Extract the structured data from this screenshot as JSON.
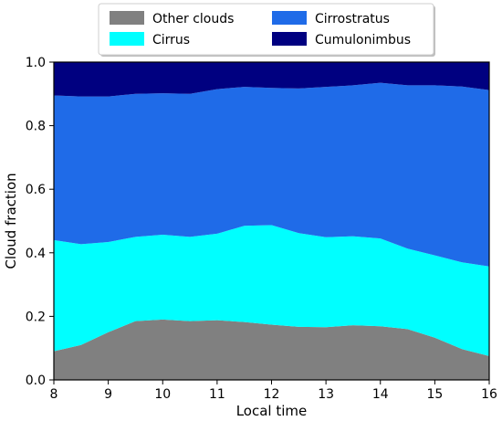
{
  "chart_data": {
    "type": "area",
    "stacked": true,
    "xlabel": "Local time",
    "ylabel": "Cloud fraction",
    "xlim": [
      8,
      16
    ],
    "ylim": [
      0,
      1.0
    ],
    "x_ticks": [
      8,
      9,
      10,
      11,
      12,
      13,
      14,
      15,
      16
    ],
    "y_ticks": [
      0.0,
      0.2,
      0.4,
      0.6,
      0.8,
      1.0
    ],
    "y_tick_labels": [
      "0.0",
      "0.2",
      "0.4",
      "0.6",
      "0.8",
      "1.0"
    ],
    "grid": false,
    "legend_position": "top-center",
    "x": [
      8,
      8.5,
      9,
      9.5,
      10,
      10.5,
      11,
      11.5,
      12,
      12.5,
      13,
      13.5,
      14,
      14.5,
      15,
      15.5,
      16
    ],
    "series": [
      {
        "name": "Other clouds",
        "color": "#808080",
        "values": [
          0.09,
          0.11,
          0.15,
          0.185,
          0.19,
          0.185,
          0.188,
          0.182,
          0.174,
          0.167,
          0.166,
          0.172,
          0.169,
          0.16,
          0.133,
          0.097,
          0.075
        ]
      },
      {
        "name": "Cirrus",
        "color": "#00ffff",
        "values": [
          0.35,
          0.317,
          0.284,
          0.265,
          0.267,
          0.265,
          0.272,
          0.303,
          0.313,
          0.295,
          0.283,
          0.28,
          0.276,
          0.253,
          0.259,
          0.273,
          0.282
        ]
      },
      {
        "name": "Cirrostratus",
        "color": "#1f6be8",
        "values": [
          0.455,
          0.465,
          0.458,
          0.45,
          0.445,
          0.45,
          0.455,
          0.437,
          0.432,
          0.455,
          0.473,
          0.475,
          0.49,
          0.514,
          0.535,
          0.553,
          0.555
        ]
      },
      {
        "name": "Cumulonimbus",
        "color": "#000080",
        "values": [
          0.105,
          0.108,
          0.108,
          0.1,
          0.098,
          0.1,
          0.085,
          0.078,
          0.081,
          0.083,
          0.078,
          0.073,
          0.065,
          0.073,
          0.073,
          0.077,
          0.088
        ]
      }
    ],
    "legend_order": [
      0,
      2,
      1,
      3
    ]
  }
}
